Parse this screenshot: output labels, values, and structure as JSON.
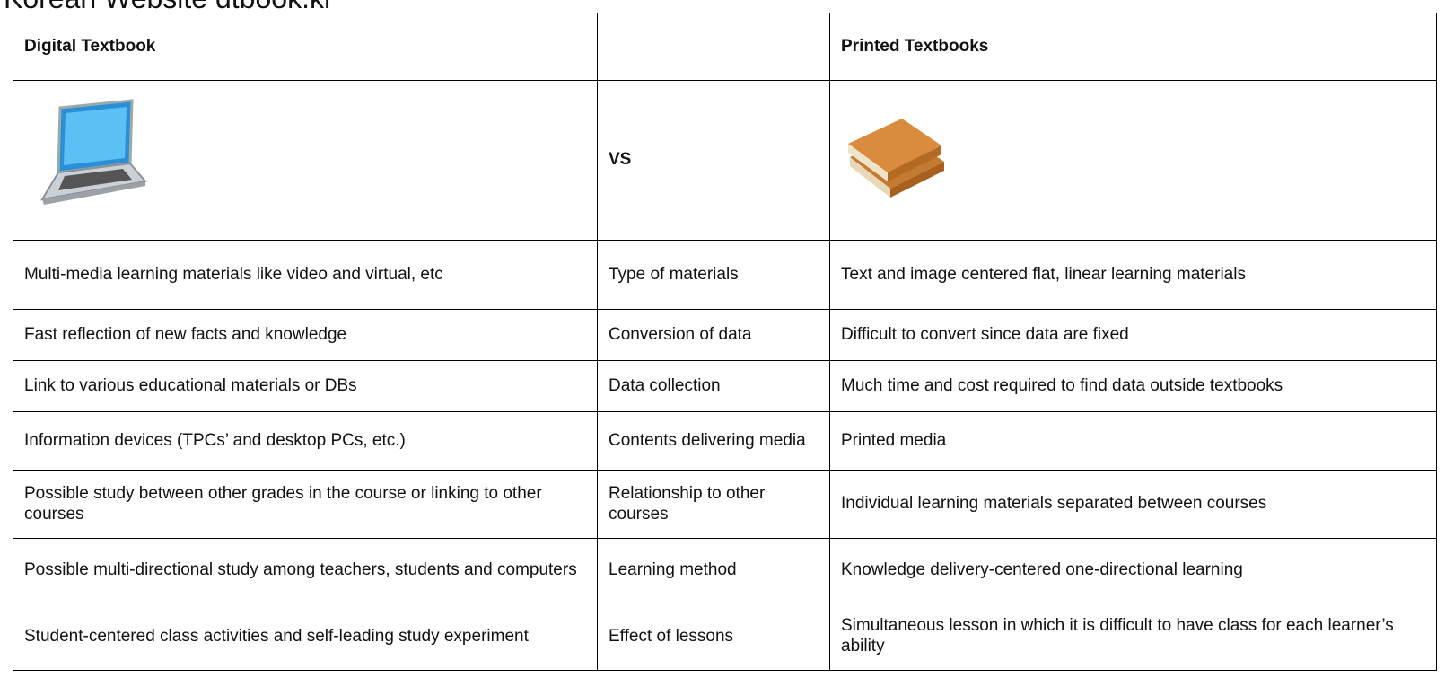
{
  "title": "Korean Website dtbook.kr",
  "table": {
    "header": [
      "Digital Textbook",
      "Printed Textbooks"
    ],
    "vs": "VS",
    "rows": [
      [
        "Multi-media learning materials like video and virtual, etc",
        "Type of materials",
        "Text and image centered flat, linear learning materials"
      ],
      [
        "Fast reflection of new facts and knowledge",
        "Conversion of data",
        "Difficult to convert since data are fixed"
      ],
      [
        "Link to various educational materials or DBs",
        "Data collection",
        "Much time and cost required to find data outside textbooks"
      ],
      [
        "Information devices (TPCs’ and desktop PCs, etc.)",
        "Contents delivering media",
        "Printed media"
      ],
      [
        "Possible study between other grades in the course or linking to other courses",
        "Relationship to other courses",
        "Individual learning materials separated between courses"
      ],
      [
        "Possible multi-directional study among teachers, students and computers",
        "Learning method",
        "Knowledge delivery-centered one-directional learning"
      ],
      [
        "Student-centered class activities and self-leading study experiment",
        "Effect of lessons",
        "Simultaneous lesson in which it is difficult to have class for each learner’s ability"
      ]
    ]
  }
}
